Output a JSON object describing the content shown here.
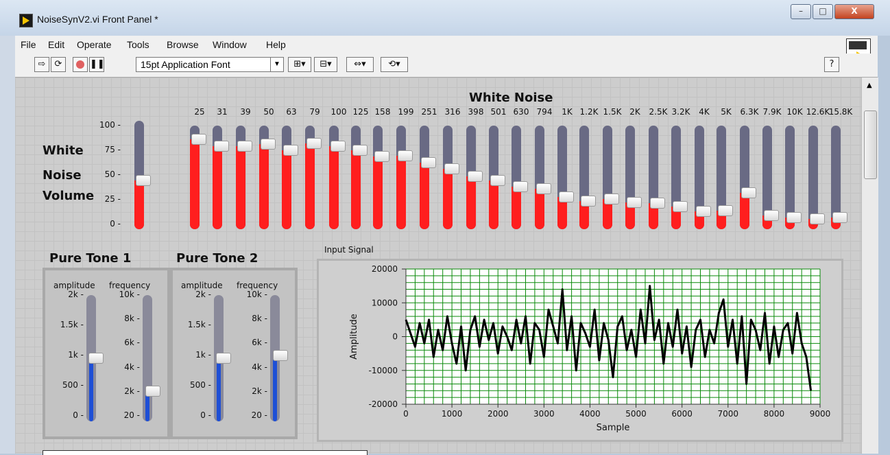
{
  "window": {
    "title": "NoiseSynV2.vi Front Panel *",
    "controls": {
      "minimize": "–",
      "maximize": "□",
      "close": "X"
    }
  },
  "menu": [
    "File",
    "Edit",
    "Operate",
    "Tools",
    "Browse",
    "Window",
    "Help"
  ],
  "toolbar": {
    "font": "15pt Application Font",
    "icons": [
      "run-arrow-icon",
      "run-continuously-icon",
      "abort-icon",
      "pause-icon",
      "align-icon",
      "distribute-icon",
      "resize-icon",
      "reorder-icon",
      "help-icon",
      "vi-icon"
    ]
  },
  "white_noise": {
    "title": "White Noise",
    "volume_label_lines": [
      "White",
      "Noise",
      "Volume"
    ],
    "volume_scale": [
      "100",
      "75",
      "50",
      "25",
      "0"
    ],
    "volume_value": 45,
    "bands": [
      {
        "label": "25",
        "value": 87
      },
      {
        "label": "31",
        "value": 80
      },
      {
        "label": "39",
        "value": 80
      },
      {
        "label": "50",
        "value": 82
      },
      {
        "label": "63",
        "value": 76
      },
      {
        "label": "79",
        "value": 83
      },
      {
        "label": "100",
        "value": 80
      },
      {
        "label": "125",
        "value": 76
      },
      {
        "label": "158",
        "value": 70
      },
      {
        "label": "199",
        "value": 71
      },
      {
        "label": "251",
        "value": 64
      },
      {
        "label": "316",
        "value": 58
      },
      {
        "label": "398",
        "value": 51
      },
      {
        "label": "501",
        "value": 47
      },
      {
        "label": "630",
        "value": 41
      },
      {
        "label": "794",
        "value": 39
      },
      {
        "label": "1K",
        "value": 31
      },
      {
        "label": "1.2K",
        "value": 27
      },
      {
        "label": "1.5K",
        "value": 29
      },
      {
        "label": "2K",
        "value": 26
      },
      {
        "label": "2.5K",
        "value": 25
      },
      {
        "label": "3.2K",
        "value": 22
      },
      {
        "label": "4K",
        "value": 17
      },
      {
        "label": "5K",
        "value": 18
      },
      {
        "label": "6.3K",
        "value": 35
      },
      {
        "label": "7.9K",
        "value": 13
      },
      {
        "label": "10K",
        "value": 11
      },
      {
        "label": "12.6K",
        "value": 10
      },
      {
        "label": "15.8K",
        "value": 11
      }
    ]
  },
  "pure_tone_1": {
    "title": "Pure Tone 1",
    "amp_label": "amplitude",
    "freq_label": "frequency",
    "amp_scale": [
      "2k",
      "1.5k",
      "1k",
      "500",
      "0"
    ],
    "freq_scale": [
      "10k",
      "8k",
      "6k",
      "4k",
      "2k",
      "20"
    ],
    "amp_value": 1000,
    "amp_max": 2000,
    "freq_fraction": 0.24
  },
  "pure_tone_2": {
    "title": "Pure Tone 2",
    "amp_label": "amplitude",
    "freq_label": "frequency",
    "amp_scale": [
      "2k",
      "1.5k",
      "1k",
      "500",
      "0"
    ],
    "freq_scale": [
      "10k",
      "8k",
      "6k",
      "4k",
      "2k",
      "20"
    ],
    "amp_value": 1000,
    "amp_max": 2000,
    "freq_fraction": 0.52
  },
  "chart_data": {
    "type": "line",
    "title": "Input Signal",
    "xlabel": "Sample",
    "ylabel": "Amplitude",
    "xlim": [
      0,
      9000
    ],
    "ylim": [
      -20000,
      20000
    ],
    "xticks": [
      "0",
      "1000",
      "2000",
      "3000",
      "4000",
      "5000",
      "6000",
      "7000",
      "8000",
      "9000"
    ],
    "yticks": [
      "20000",
      "10000",
      "0",
      "-10000",
      "-20000"
    ],
    "grid": true,
    "grid_color": "#0a8a0a",
    "line_color": "#000000",
    "x": [
      0,
      100,
      200,
      300,
      400,
      500,
      600,
      700,
      800,
      900,
      1000,
      1100,
      1200,
      1300,
      1400,
      1500,
      1600,
      1700,
      1800,
      1900,
      2000,
      2100,
      2200,
      2300,
      2400,
      2500,
      2600,
      2700,
      2800,
      2900,
      3000,
      3100,
      3200,
      3300,
      3400,
      3500,
      3600,
      3700,
      3800,
      3900,
      4000,
      4100,
      4200,
      4300,
      4400,
      4500,
      4600,
      4700,
      4800,
      4900,
      5000,
      5100,
      5200,
      5300,
      5400,
      5500,
      5600,
      5700,
      5800,
      5900,
      6000,
      6100,
      6200,
      6300,
      6400,
      6500,
      6600,
      6700,
      6800,
      6900,
      7000,
      7100,
      7200,
      7300,
      7400,
      7500,
      7600,
      7700,
      7800,
      7900,
      8000,
      8100,
      8200,
      8300,
      8400,
      8500,
      8600,
      8700,
      8800
    ],
    "y": [
      5000,
      1000,
      -3000,
      4000,
      -2000,
      5000,
      -6000,
      2000,
      -4000,
      6000,
      -2000,
      -8000,
      3000,
      -10000,
      2000,
      6000,
      -3000,
      5000,
      -1000,
      4000,
      -5000,
      3000,
      0,
      -4000,
      5000,
      -2000,
      6000,
      -8000,
      4000,
      2000,
      -6000,
      8000,
      3000,
      -2000,
      14000,
      -4000,
      6000,
      -10000,
      4000,
      1000,
      -3000,
      8000,
      -7000,
      4000,
      -1000,
      -12000,
      3000,
      6000,
      -4000,
      2000,
      -6000,
      8000,
      -2000,
      15000,
      -1000,
      5000,
      -8000,
      4000,
      -3000,
      8000,
      -5000,
      3000,
      -9000,
      2000,
      5000,
      -6000,
      2000,
      -2000,
      7000,
      11000,
      -3000,
      5000,
      -8000,
      6000,
      -14000,
      5000,
      2000,
      -4000,
      7000,
      -8000,
      3000,
      -6000,
      2000,
      4000,
      -5000,
      7000,
      -2000,
      -6000,
      -16000
    ]
  }
}
